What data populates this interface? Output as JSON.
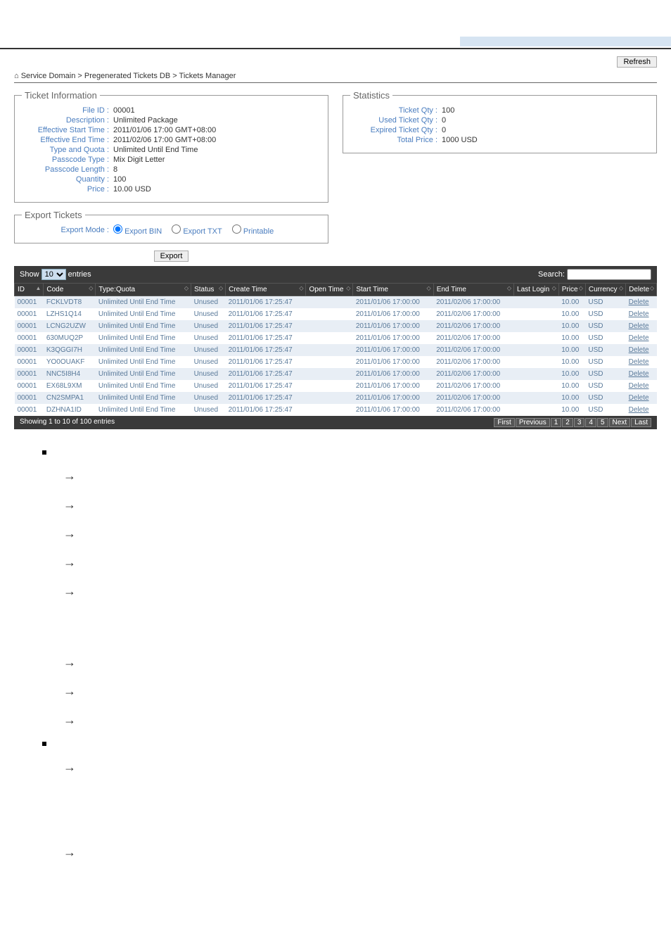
{
  "refresh": "Refresh",
  "breadcrumb": {
    "home": "⌂",
    "parts": [
      "Service Domain",
      "Pregenerated Tickets DB",
      "Tickets Manager"
    ]
  },
  "ticket_info": {
    "legend": "Ticket Information",
    "rows": [
      {
        "label": "File ID :",
        "value": "00001"
      },
      {
        "label": "Description :",
        "value": "Unlimited Package"
      },
      {
        "label": "Effective Start Time :",
        "value": "2011/01/06 17:00 GMT+08:00"
      },
      {
        "label": "Effective End Time :",
        "value": "2011/02/06 17:00 GMT+08:00"
      },
      {
        "label": "Type and Quota :",
        "value": "Unlimited Until End Time"
      },
      {
        "label": "Passcode Type :",
        "value": "Mix Digit Letter"
      },
      {
        "label": "Passcode Length :",
        "value": "8"
      },
      {
        "label": "Quantity :",
        "value": "100"
      },
      {
        "label": "Price :",
        "value": "10.00 USD"
      }
    ]
  },
  "statistics": {
    "legend": "Statistics",
    "rows": [
      {
        "label": "Ticket Qty :",
        "value": "100"
      },
      {
        "label": "Used Ticket Qty :",
        "value": "0"
      },
      {
        "label": "Expired Ticket Qty :",
        "value": "0"
      },
      {
        "label": "Total Price :",
        "value": "1000 USD"
      }
    ]
  },
  "export": {
    "legend": "Export Tickets",
    "mode_label": "Export Mode :",
    "opt_bin": "Export BIN",
    "opt_txt": "Export TXT",
    "opt_print": "Printable",
    "btn": "Export"
  },
  "dt": {
    "show": "Show",
    "entries": "entries",
    "search": "Search:",
    "select_val": "10",
    "cols": [
      "ID",
      "Code",
      "Type:Quota",
      "Status",
      "Create Time",
      "Open Time",
      "Start Time",
      "End Time",
      "Last Login",
      "Price",
      "Currency",
      "Delete"
    ],
    "rows": [
      [
        "00001",
        "FCKLVDT8",
        "Unlimited Until End Time",
        "Unused",
        "2011/01/06 17:25:47",
        "",
        "2011/01/06 17:00:00",
        "2011/02/06 17:00:00",
        "",
        "10.00",
        "USD",
        "Delete"
      ],
      [
        "00001",
        "LZHS1Q14",
        "Unlimited Until End Time",
        "Unused",
        "2011/01/06 17:25:47",
        "",
        "2011/01/06 17:00:00",
        "2011/02/06 17:00:00",
        "",
        "10.00",
        "USD",
        "Delete"
      ],
      [
        "00001",
        "LCNG2UZW",
        "Unlimited Until End Time",
        "Unused",
        "2011/01/06 17:25:47",
        "",
        "2011/01/06 17:00:00",
        "2011/02/06 17:00:00",
        "",
        "10.00",
        "USD",
        "Delete"
      ],
      [
        "00001",
        "630MUQ2P",
        "Unlimited Until End Time",
        "Unused",
        "2011/01/06 17:25:47",
        "",
        "2011/01/06 17:00:00",
        "2011/02/06 17:00:00",
        "",
        "10.00",
        "USD",
        "Delete"
      ],
      [
        "00001",
        "K3QGGI7H",
        "Unlimited Until End Time",
        "Unused",
        "2011/01/06 17:25:47",
        "",
        "2011/01/06 17:00:00",
        "2011/02/06 17:00:00",
        "",
        "10.00",
        "USD",
        "Delete"
      ],
      [
        "00001",
        "YO0OUAKF",
        "Unlimited Until End Time",
        "Unused",
        "2011/01/06 17:25:47",
        "",
        "2011/01/06 17:00:00",
        "2011/02/06 17:00:00",
        "",
        "10.00",
        "USD",
        "Delete"
      ],
      [
        "00001",
        "NNC5I8H4",
        "Unlimited Until End Time",
        "Unused",
        "2011/01/06 17:25:47",
        "",
        "2011/01/06 17:00:00",
        "2011/02/06 17:00:00",
        "",
        "10.00",
        "USD",
        "Delete"
      ],
      [
        "00001",
        "EX68L9XM",
        "Unlimited Until End Time",
        "Unused",
        "2011/01/06 17:25:47",
        "",
        "2011/01/06 17:00:00",
        "2011/02/06 17:00:00",
        "",
        "10.00",
        "USD",
        "Delete"
      ],
      [
        "00001",
        "CN2SMPA1",
        "Unlimited Until End Time",
        "Unused",
        "2011/01/06 17:25:47",
        "",
        "2011/01/06 17:00:00",
        "2011/02/06 17:00:00",
        "",
        "10.00",
        "USD",
        "Delete"
      ],
      [
        "00001",
        "DZHNA1ID",
        "Unlimited Until End Time",
        "Unused",
        "2011/01/06 17:25:47",
        "",
        "2011/01/06 17:00:00",
        "2011/02/06 17:00:00",
        "",
        "10.00",
        "USD",
        "Delete"
      ]
    ],
    "footer_info": "Showing 1 to 10 of 100 entries",
    "pager": [
      "First",
      "Previous",
      "1",
      "2",
      "3",
      "4",
      "5",
      "Next",
      "Last"
    ]
  }
}
